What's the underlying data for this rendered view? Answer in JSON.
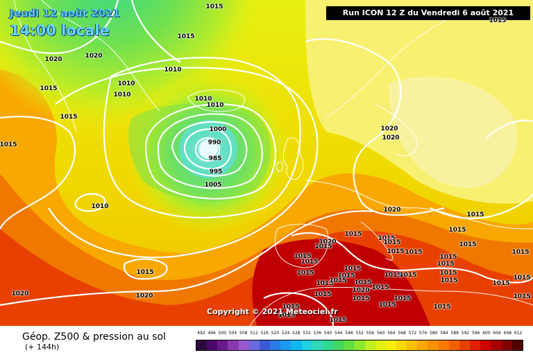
{
  "header": {
    "date_line": "Jeudi 12 août 2021",
    "time_line": "14:00 locale",
    "run_info": "Run ICON 12 Z du Vendredi 6 août 2021"
  },
  "copyright": "Copyright © 2021 Meteociel.fr",
  "footer": {
    "title": "Géop. Z500 & pression au sol",
    "lead_time": "(+ 144h)"
  },
  "low_center_values": [
    "990",
    "985",
    "995",
    "1000",
    "1005"
  ],
  "isobar_labels": [
    "1015",
    "1020",
    "1020",
    "1015",
    "1015",
    "1015",
    "1015",
    "1010",
    "1010",
    "1010",
    "1010",
    "1010",
    "1010",
    "1020",
    "1020",
    "1015",
    "1020",
    "1015",
    "1020",
    "1015",
    "1015",
    "1015",
    "1015",
    "1015",
    "1015",
    "1015",
    "1015",
    "1015",
    "1015",
    "1015",
    "1015",
    "1015",
    "1015",
    "1015",
    "1015",
    "1020",
    "1015",
    "1015",
    "1015",
    "1015",
    "1015",
    "1015",
    "1015",
    "1015",
    "1015",
    "1015",
    "1015",
    "1015",
    "1015",
    "1015",
    "1015",
    "1015",
    "1020",
    "1020",
    "1015",
    "1015",
    "1015",
    "1015"
  ],
  "legend": {
    "unit_ticks": [
      "492",
      "496",
      "500",
      "504",
      "508",
      "512",
      "516",
      "520",
      "524",
      "528",
      "532",
      "536",
      "540",
      "544",
      "548",
      "552",
      "556",
      "560",
      "564",
      "568",
      "572",
      "576",
      "580",
      "584",
      "588",
      "592",
      "596",
      "600",
      "604",
      "608",
      "612"
    ],
    "colors": [
      "#2a0a3a",
      "#4a0a6a",
      "#6a1a8c",
      "#8a3ab0",
      "#9a5acf",
      "#6a6ae0",
      "#3a5ad8",
      "#2a7ae8",
      "#1a9af0",
      "#10b8f0",
      "#20d0e0",
      "#30d8b8",
      "#30d890",
      "#40d860",
      "#60e040",
      "#90e830",
      "#c0f020",
      "#e0f010",
      "#f8f000",
      "#f8d800",
      "#f8c000",
      "#f8a800",
      "#f89000",
      "#f87800",
      "#f06000",
      "#e84000",
      "#e02000",
      "#d00000",
      "#a80000",
      "#800000",
      "#500000"
    ]
  }
}
